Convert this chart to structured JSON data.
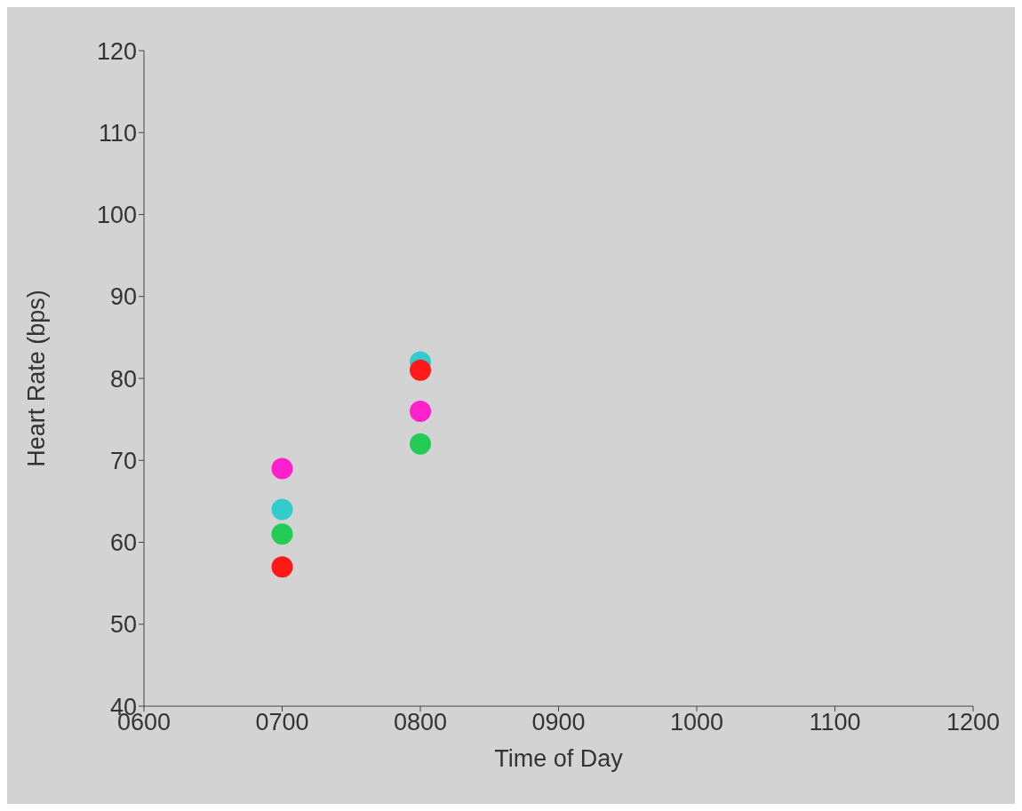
{
  "chart_data": {
    "type": "scatter",
    "xlabel": "Time of Day",
    "ylabel": "Heart Rate (bps)",
    "x": [
      700,
      800
    ],
    "xlim": [
      600,
      1200
    ],
    "xticks": [
      {
        "value": 600,
        "label": "0600"
      },
      {
        "value": 700,
        "label": "0700"
      },
      {
        "value": 800,
        "label": "0800"
      },
      {
        "value": 900,
        "label": "0900"
      },
      1000,
      1100,
      1200
    ],
    "ylim": [
      40,
      120
    ],
    "yticks": [
      40,
      50,
      60,
      70,
      80,
      90,
      100,
      110,
      120
    ],
    "series": [
      {
        "color": "#ff1a1a",
        "values": [
          57,
          81
        ]
      },
      {
        "color": "#22cc55",
        "values": [
          61,
          72
        ]
      },
      {
        "color": "#33cccc",
        "values": [
          64,
          82
        ]
      },
      {
        "color": "#ff22cc",
        "values": [
          69,
          76
        ]
      }
    ],
    "marker": "circle",
    "grid": false,
    "legend": false
  }
}
